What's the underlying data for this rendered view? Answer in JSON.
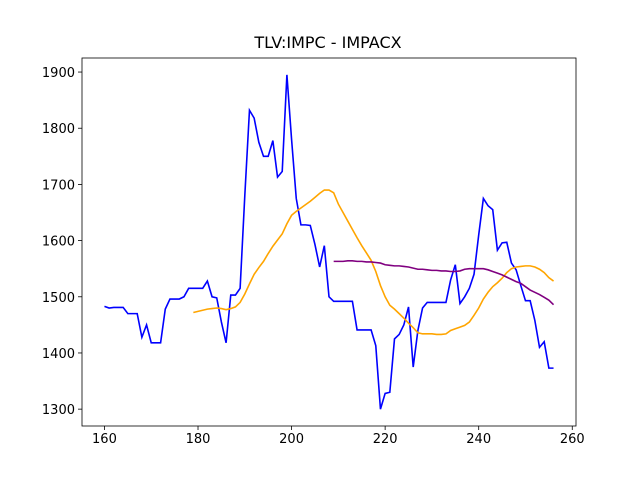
{
  "chart_data": {
    "type": "line",
    "title": "TLV:IMPC - IMPACX",
    "x": [
      160,
      161,
      162,
      163,
      164,
      165,
      166,
      167,
      168,
      169,
      170,
      171,
      172,
      173,
      174,
      175,
      176,
      177,
      178,
      179,
      180,
      181,
      182,
      183,
      184,
      185,
      186,
      187,
      188,
      189,
      190,
      191,
      192,
      193,
      194,
      195,
      196,
      197,
      198,
      199,
      200,
      201,
      202,
      203,
      204,
      205,
      206,
      207,
      208,
      209,
      210,
      211,
      212,
      213,
      214,
      215,
      216,
      217,
      218,
      219,
      220,
      221,
      222,
      223,
      224,
      225,
      226,
      227,
      228,
      229,
      230,
      231,
      232,
      233,
      234,
      235,
      236,
      237,
      238,
      239,
      240,
      241,
      242,
      243,
      244,
      245,
      246,
      247,
      248,
      249,
      250,
      251,
      252,
      253,
      254,
      255,
      256
    ],
    "series": [
      {
        "color": "#0000ff",
        "values": [
          1483,
          1480,
          1481,
          1481,
          1481,
          1470,
          1470,
          1470,
          1428,
          1450,
          1418,
          1418,
          1418,
          1478,
          1496,
          1496,
          1496,
          1500,
          1515,
          1515,
          1515,
          1515,
          1528,
          1500,
          1498,
          1455,
          1418,
          1503,
          1503,
          1515,
          1680,
          1832,
          1818,
          1775,
          1750,
          1750,
          1778,
          1713,
          1723,
          1895,
          1780,
          1675,
          1628,
          1628,
          1627,
          1593,
          1553,
          1591,
          1500,
          1492,
          1492,
          1492,
          1492,
          1492,
          1441,
          1441,
          1441,
          1441,
          1413,
          1300,
          1328,
          1330,
          1425,
          1433,
          1450,
          1482,
          1375,
          1440,
          1480,
          1490,
          1490,
          1490,
          1490,
          1490,
          1530,
          1557,
          1488,
          1500,
          1515,
          1540,
          1610,
          1675,
          1662,
          1655,
          1583,
          1596,
          1597,
          1560,
          1548,
          1520,
          1493,
          1493,
          1458,
          1410,
          1420,
          1373,
          1373
        ]
      },
      {
        "color": "#ffa500",
        "values": [
          null,
          null,
          null,
          null,
          null,
          null,
          null,
          null,
          null,
          null,
          null,
          null,
          null,
          null,
          null,
          null,
          null,
          null,
          null,
          1472,
          1474,
          1476,
          1478,
          1479,
          1480,
          1479,
          1477,
          1479,
          1482,
          1490,
          1505,
          1523,
          1540,
          1552,
          1563,
          1577,
          1590,
          1601,
          1612,
          1630,
          1645,
          1652,
          1658,
          1664,
          1670,
          1677,
          1684,
          1690,
          1690,
          1685,
          1665,
          1650,
          1635,
          1620,
          1605,
          1591,
          1578,
          1565,
          1545,
          1520,
          1500,
          1485,
          1478,
          1470,
          1462,
          1453,
          1445,
          1436,
          1434,
          1434,
          1434,
          1433,
          1433,
          1434,
          1440,
          1443,
          1446,
          1449,
          1455,
          1467,
          1480,
          1496,
          1508,
          1518,
          1525,
          1533,
          1543,
          1550,
          1553,
          1554,
          1555,
          1555,
          1553,
          1549,
          1543,
          1534,
          1528
        ]
      },
      {
        "color": "#800080",
        "values": [
          null,
          null,
          null,
          null,
          null,
          null,
          null,
          null,
          null,
          null,
          null,
          null,
          null,
          null,
          null,
          null,
          null,
          null,
          null,
          null,
          null,
          null,
          null,
          null,
          null,
          null,
          null,
          null,
          null,
          null,
          null,
          null,
          null,
          null,
          null,
          null,
          null,
          null,
          null,
          null,
          null,
          null,
          null,
          null,
          null,
          null,
          null,
          null,
          null,
          1563,
          1563,
          1563,
          1564,
          1564,
          1563,
          1563,
          1562,
          1562,
          1561,
          1560,
          1557,
          1556,
          1555,
          1555,
          1554,
          1553,
          1551,
          1549,
          1549,
          1548,
          1547,
          1547,
          1546,
          1546,
          1545,
          1545,
          1546,
          1549,
          1550,
          1550,
          1550,
          1550,
          1548,
          1545,
          1542,
          1539,
          1535,
          1531,
          1527,
          1524,
          1518,
          1512,
          1508,
          1504,
          1499,
          1494,
          1486
        ]
      }
    ],
    "xlim": [
      155.2,
      260.8
    ],
    "ylim": [
      1270,
      1925
    ],
    "xticks": [
      160,
      180,
      200,
      220,
      240,
      260
    ],
    "yticks": [
      1300,
      1400,
      1500,
      1600,
      1700,
      1800,
      1900
    ]
  }
}
